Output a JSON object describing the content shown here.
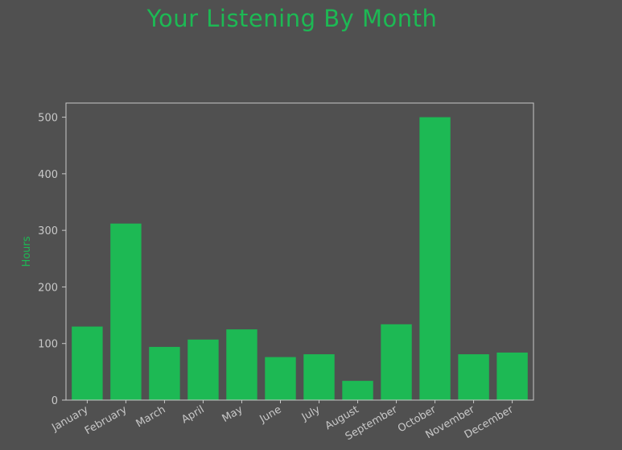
{
  "chart_data": {
    "type": "bar",
    "title": "Your Listening By Month",
    "xlabel": "",
    "ylabel": "Hours",
    "categories": [
      "January",
      "February",
      "March",
      "April",
      "May",
      "June",
      "July",
      "August",
      "September",
      "October",
      "November",
      "December"
    ],
    "values": [
      130,
      312,
      94,
      107,
      125,
      76,
      81,
      34,
      134,
      500,
      81,
      84
    ],
    "ylim": [
      0,
      525
    ],
    "yticks": [
      0,
      100,
      200,
      300,
      400,
      500
    ],
    "grid": false,
    "legend": "none"
  },
  "colors": {
    "background": "#505050",
    "bar": "#1db954",
    "title": "#1db954",
    "ylabel": "#1db954",
    "axis": "#c8c8c8",
    "tick_label": "#c8c8c8"
  }
}
